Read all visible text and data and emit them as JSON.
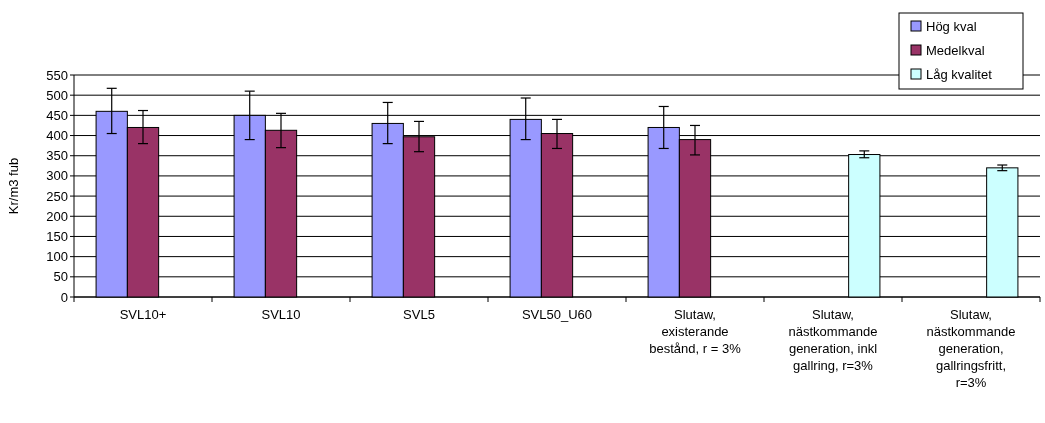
{
  "chart_data": {
    "type": "bar",
    "ylabel": "Kr/m3 fub",
    "categories": [
      "SVL10+",
      "SVL10",
      "SVL5",
      "SVL50_U60",
      "Slutaw, existerande bestånd, r = 3%",
      "Slutaw, nästkommande generation, inkl gallring, r=3%",
      "Slutaw, nästkommande generation, gallringsfritt, r=3%"
    ],
    "series": [
      {
        "name": "Hög kval",
        "color": "#9999ff",
        "values": [
          460,
          450,
          430,
          440,
          420,
          null,
          null
        ],
        "errors": [
          [
            405,
            517
          ],
          [
            390,
            510
          ],
          [
            380,
            482
          ],
          [
            390,
            493
          ],
          [
            368,
            472
          ],
          null,
          null
        ]
      },
      {
        "name": "Medelkval",
        "color": "#993366",
        "values": [
          420,
          413,
          397,
          405,
          390,
          null,
          null
        ],
        "errors": [
          [
            380,
            462
          ],
          [
            370,
            455
          ],
          [
            360,
            435
          ],
          [
            368,
            440
          ],
          [
            352,
            425
          ],
          null,
          null
        ]
      },
      {
        "name": "Låg kvalitet",
        "color": "#ccffff",
        "values": [
          null,
          null,
          null,
          null,
          null,
          353,
          320
        ],
        "errors": [
          null,
          null,
          null,
          null,
          null,
          [
            345,
            362
          ],
          [
            313,
            327
          ]
        ]
      }
    ],
    "ylim": [
      0,
      550
    ],
    "yticks": [
      0,
      50,
      100,
      150,
      200,
      250,
      300,
      350,
      400,
      450,
      500,
      550
    ],
    "grid": "y",
    "legend": "top right"
  }
}
